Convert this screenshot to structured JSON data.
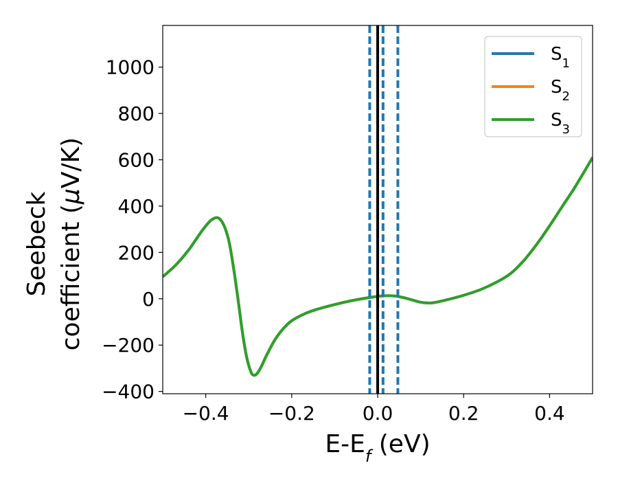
{
  "chart_data": {
    "type": "line",
    "xlabel": {
      "main": "E-E",
      "sub": "f",
      "suffix": " (eV)"
    },
    "ylabel": {
      "line1": "Seebeck",
      "line2_pre": "coefficient  (",
      "mu": "μ",
      "line2_post": "V/K)"
    },
    "xlim": [
      -0.5,
      0.5
    ],
    "ylim": [
      -410,
      1180
    ],
    "xticks": [
      -0.4,
      -0.2,
      0.0,
      0.2,
      0.4
    ],
    "xtick_labels": [
      "−0.4",
      "−0.2",
      "0.0",
      "0.2",
      "0.4"
    ],
    "yticks": [
      -400,
      -200,
      0,
      200,
      400,
      600,
      800,
      1000
    ],
    "ytick_labels": [
      "−400",
      "−200",
      "0",
      "200",
      "400",
      "600",
      "800",
      "1000"
    ],
    "grid": false,
    "legend_position": "top-right",
    "series": [
      {
        "name": "S",
        "sub": "1",
        "color": "#1f77b4",
        "x": [
          -0.5,
          -0.47,
          -0.44,
          -0.41,
          -0.39,
          -0.375,
          -0.365,
          -0.355,
          -0.345,
          -0.335,
          -0.325,
          -0.315,
          -0.305,
          -0.295,
          -0.288,
          -0.28,
          -0.27,
          -0.26,
          -0.24,
          -0.22,
          -0.2,
          -0.17,
          -0.14,
          -0.1,
          -0.06,
          -0.03,
          0.0,
          0.02,
          0.04,
          0.06,
          0.08,
          0.1,
          0.115,
          0.13,
          0.16,
          0.2,
          0.24,
          0.28,
          0.31,
          0.34,
          0.37,
          0.4,
          0.43,
          0.46,
          0.5
        ],
        "y": [
          95,
          145,
          210,
          290,
          335,
          350,
          340,
          305,
          240,
          130,
          0,
          -140,
          -250,
          -315,
          -330,
          -322,
          -290,
          -250,
          -180,
          -130,
          -95,
          -65,
          -45,
          -25,
          -8,
          2,
          10,
          13,
          12,
          5,
          -5,
          -15,
          -18,
          -17,
          -5,
          15,
          40,
          75,
          110,
          165,
          235,
          315,
          400,
          485,
          610
        ]
      },
      {
        "name": "S",
        "sub": "2",
        "color": "#ff7f0e",
        "x": [
          -0.5,
          -0.47,
          -0.44,
          -0.41,
          -0.39,
          -0.375,
          -0.365,
          -0.355,
          -0.345,
          -0.335,
          -0.325,
          -0.315,
          -0.305,
          -0.295,
          -0.288,
          -0.28,
          -0.27,
          -0.26,
          -0.24,
          -0.22,
          -0.2,
          -0.17,
          -0.14,
          -0.1,
          -0.06,
          -0.03,
          0.0,
          0.02,
          0.04,
          0.06,
          0.08,
          0.1,
          0.115,
          0.13,
          0.16,
          0.2,
          0.24,
          0.28,
          0.31,
          0.34,
          0.37,
          0.4,
          0.43,
          0.46,
          0.5
        ],
        "y": [
          95,
          145,
          210,
          290,
          335,
          350,
          340,
          305,
          240,
          130,
          0,
          -140,
          -250,
          -315,
          -330,
          -322,
          -290,
          -250,
          -180,
          -130,
          -95,
          -65,
          -45,
          -25,
          -8,
          2,
          10,
          13,
          12,
          5,
          -5,
          -15,
          -18,
          -17,
          -5,
          15,
          40,
          75,
          110,
          165,
          235,
          315,
          400,
          485,
          610
        ]
      },
      {
        "name": "S",
        "sub": "3",
        "color": "#2ca02c",
        "x": [
          -0.5,
          -0.47,
          -0.44,
          -0.41,
          -0.39,
          -0.375,
          -0.365,
          -0.355,
          -0.345,
          -0.335,
          -0.325,
          -0.315,
          -0.305,
          -0.295,
          -0.288,
          -0.28,
          -0.27,
          -0.26,
          -0.24,
          -0.22,
          -0.2,
          -0.17,
          -0.14,
          -0.1,
          -0.06,
          -0.03,
          0.0,
          0.02,
          0.04,
          0.06,
          0.08,
          0.1,
          0.115,
          0.13,
          0.16,
          0.2,
          0.24,
          0.28,
          0.31,
          0.34,
          0.37,
          0.4,
          0.43,
          0.46,
          0.5
        ],
        "y": [
          95,
          145,
          210,
          290,
          335,
          350,
          340,
          305,
          240,
          130,
          0,
          -140,
          -250,
          -315,
          -330,
          -322,
          -290,
          -250,
          -180,
          -130,
          -95,
          -65,
          -45,
          -25,
          -8,
          2,
          10,
          13,
          12,
          5,
          -5,
          -15,
          -18,
          -17,
          -5,
          15,
          40,
          75,
          110,
          165,
          235,
          315,
          400,
          485,
          610
        ]
      }
    ],
    "vlines": [
      {
        "x": -0.0185,
        "style": "dashed",
        "color": "#1f77b4"
      },
      {
        "x": 0.0,
        "style": "solid",
        "color": "#000000"
      },
      {
        "x": 0.0125,
        "style": "dashed",
        "color": "#1f77b4"
      },
      {
        "x": 0.047,
        "style": "dashed",
        "color": "#1f77b4"
      }
    ]
  }
}
